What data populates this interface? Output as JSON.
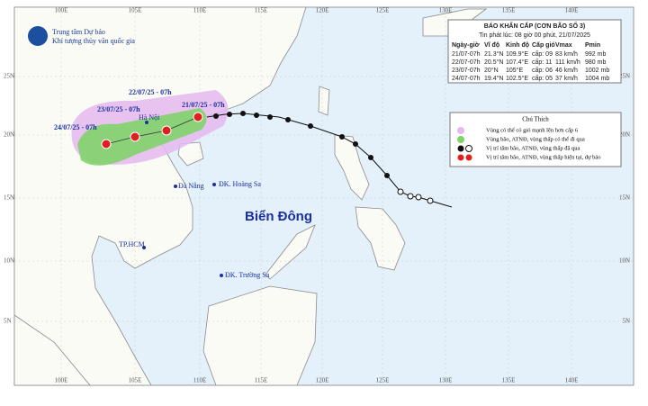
{
  "header": {
    "org_line1": "Trung tâm Dự báo",
    "org_line2": "Khí tượng thủy văn quốc gia"
  },
  "bulletin": {
    "title": "BÁO KHẨN CẤP (CƠN BÃO SỐ 3)",
    "issued": "Tin phát lúc: 08 giờ 00 phút, 21/07/2025",
    "columns": [
      "Ngày-giờ",
      "Vĩ độ",
      "Kinh độ",
      "Cấp gió",
      "Vmax",
      "Pmin"
    ],
    "rows": [
      [
        "21/07-07h",
        "21.3°N",
        "109.9°E",
        "cấp: 09",
        "83 km/h",
        "992 mb"
      ],
      [
        "22/07-07h",
        "20.5°N",
        "107.4°E",
        "cấp: 11",
        "111 km/h",
        "980 mb"
      ],
      [
        "23/07-07h",
        "20°N",
        "105°E",
        "cấp: 06",
        "46 km/h",
        "1002 mb"
      ],
      [
        "24/07-07h",
        "19.4°N",
        "102.5°E",
        "cấp: 05",
        "37 km/h",
        "1004 mb"
      ]
    ]
  },
  "legend": {
    "title": "Chú Thích",
    "items": [
      "Vùng có thể có gió mạnh lên hơn cấp 6",
      "Vùng bão, ATNĐ, vùng thấp có thể đi qua",
      "Vị trí tâm bão, ATNĐ, vùng thấp đã qua",
      "Vị trí tâm bão, ATNĐ, vùng thấp hiện tại, dự báo"
    ]
  },
  "map": {
    "forecast_labels": [
      "21/07/25 - 07h",
      "22/07/25 - 07h",
      "23/07/25 - 07h",
      "24/07/25 - 07h"
    ],
    "places": [
      "Hà Nội",
      "Đà Nẵng",
      "ĐK. Hoàng Sa",
      "TP.HCM",
      "ĐK. Trường Sa"
    ],
    "sea": "Biển Đông",
    "longitudes": [
      "100E",
      "105E",
      "110E",
      "115E",
      "120E",
      "125E",
      "130E",
      "135E",
      "140E"
    ],
    "latitudes": [
      "25N",
      "20N",
      "15N",
      "10N",
      "5N"
    ]
  }
}
